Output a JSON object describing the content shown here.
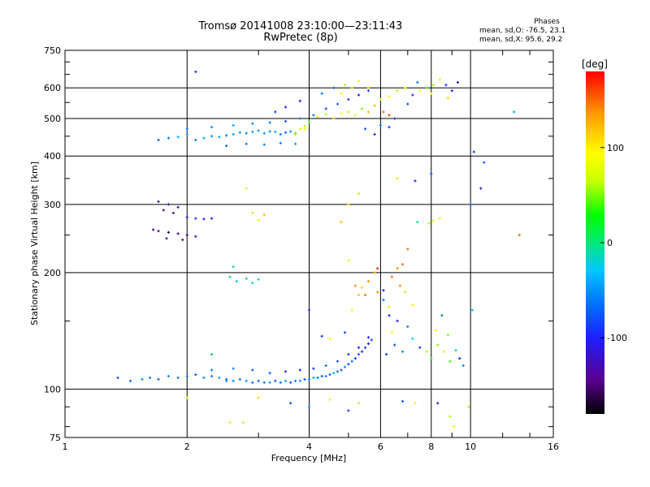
{
  "header": {
    "title": "Tromsø 20141008 23:10:00—23:11:43",
    "subtitle": "RwPretec (8p)"
  },
  "stats": {
    "title": "Phases",
    "o_line": "mean, sd,O: -76.5, 23.1",
    "x_line": "mean, sd,X:  95.6, 29.2"
  },
  "chart_data": {
    "type": "scatter",
    "title": "Tromsø 20141008 23:10:00—23:11:43",
    "subtitle": "RwPretec (8p)",
    "xlabel": "Frequency [MHz]",
    "ylabel": "Stationary phase Virtual Height [km]",
    "x_scale": "log",
    "y_scale": "log",
    "xlim": [
      1,
      16
    ],
    "ylim": [
      75,
      750
    ],
    "x_ticks": [
      1,
      2,
      4,
      6,
      8,
      10,
      16
    ],
    "x_tick_labels": [
      "1",
      "2",
      "4",
      "6",
      "8",
      "10",
      "16"
    ],
    "y_ticks": [
      75,
      100,
      200,
      300,
      400,
      500,
      600,
      750
    ],
    "y_tick_labels": [
      "75",
      "100",
      "200",
      "300",
      "400",
      "500",
      "600",
      "750"
    ],
    "grid": true,
    "colorbar": {
      "label": "[deg]",
      "range": [
        -180,
        180
      ],
      "ticks": [
        100,
        0,
        -100
      ],
      "tick_labels": [
        "100",
        "0",
        "-100"
      ]
    },
    "colors": {
      "grid": "#000000",
      "ink": "#000000",
      "colormap": [
        "#000000",
        "#5a0090",
        "#1e1eff",
        "#0078ff",
        "#00c8ff",
        "#00e878",
        "#00ff00",
        "#c8ff00",
        "#ffff00",
        "#ff9600",
        "#ff0000"
      ]
    },
    "points": [
      [
        1.35,
        107,
        -80
      ],
      [
        1.45,
        105,
        -70
      ],
      [
        1.55,
        106,
        -50
      ],
      [
        1.62,
        107,
        -60
      ],
      [
        1.7,
        106,
        -75
      ],
      [
        1.8,
        108,
        -55
      ],
      [
        1.9,
        107,
        -65
      ],
      [
        2.0,
        108,
        -60
      ],
      [
        2.1,
        109,
        -80
      ],
      [
        2.2,
        107,
        -50
      ],
      [
        2.3,
        108,
        -65
      ],
      [
        2.4,
        107,
        -40
      ],
      [
        2.5,
        106,
        -70
      ],
      [
        2.6,
        105,
        -55
      ],
      [
        2.7,
        106,
        -60
      ],
      [
        2.8,
        105,
        -45
      ],
      [
        2.9,
        104,
        -65
      ],
      [
        3.0,
        105,
        -70
      ],
      [
        3.1,
        104,
        -60
      ],
      [
        3.2,
        104,
        -50
      ],
      [
        3.3,
        105,
        -75
      ],
      [
        3.4,
        104,
        -60
      ],
      [
        3.5,
        105,
        -40
      ],
      [
        3.6,
        104,
        -70
      ],
      [
        3.7,
        105,
        -60
      ],
      [
        3.8,
        105,
        -50
      ],
      [
        3.9,
        106,
        -80
      ],
      [
        4.0,
        106,
        -65
      ],
      [
        4.1,
        107,
        -45
      ],
      [
        4.2,
        107,
        -60
      ],
      [
        4.3,
        108,
        -80
      ],
      [
        4.4,
        108,
        -55
      ],
      [
        4.5,
        109,
        -70
      ],
      [
        4.6,
        110,
        -40
      ],
      [
        4.7,
        111,
        -60
      ],
      [
        4.8,
        112,
        -75
      ],
      [
        4.9,
        114,
        -50
      ],
      [
        5.0,
        116,
        -85
      ],
      [
        5.1,
        118,
        -60
      ],
      [
        5.2,
        120,
        -95
      ],
      [
        5.3,
        123,
        -80
      ],
      [
        5.4,
        125,
        -100
      ],
      [
        5.5,
        128,
        -90
      ],
      [
        5.6,
        131,
        -105
      ],
      [
        5.7,
        134,
        -85
      ],
      [
        2.3,
        112,
        -60
      ],
      [
        2.6,
        113,
        -55
      ],
      [
        2.9,
        112,
        -70
      ],
      [
        3.2,
        110,
        -75
      ],
      [
        3.5,
        111,
        -95
      ],
      [
        3.8,
        112,
        -100
      ],
      [
        4.1,
        113,
        -90
      ],
      [
        4.4,
        115,
        -70
      ],
      [
        4.7,
        118,
        -85
      ],
      [
        5.0,
        123,
        -95
      ],
      [
        5.3,
        128,
        -110
      ],
      [
        5.6,
        136,
        -100
      ],
      [
        6.2,
        123,
        -100
      ],
      [
        6.5,
        130,
        -80
      ],
      [
        6.8,
        125,
        -60
      ],
      [
        7.2,
        135,
        -20
      ],
      [
        7.5,
        128,
        -90
      ],
      [
        7.8,
        125,
        60
      ],
      [
        8.0,
        120,
        30
      ],
      [
        8.3,
        130,
        50
      ],
      [
        8.6,
        125,
        70
      ],
      [
        8.9,
        118,
        40
      ],
      [
        9.2,
        126,
        -10
      ],
      [
        9.4,
        120,
        -100
      ],
      [
        8.2,
        142,
        90
      ],
      [
        8.8,
        138,
        50
      ],
      [
        7.0,
        145,
        -60
      ],
      [
        6.6,
        150,
        -100
      ],
      [
        6.3,
        155,
        -95
      ],
      [
        4.3,
        137,
        -90
      ],
      [
        4.0,
        160,
        -100
      ],
      [
        4.5,
        135,
        80
      ],
      [
        4.9,
        140,
        -80
      ],
      [
        5.1,
        160,
        80
      ],
      [
        5.4,
        183,
        110
      ],
      [
        5.6,
        190,
        140
      ],
      [
        5.8,
        200,
        130
      ],
      [
        5.3,
        175,
        120
      ],
      [
        6.7,
        185,
        140
      ],
      [
        6.4,
        195,
        150
      ],
      [
        6.9,
        178,
        60
      ],
      [
        7.2,
        165,
        100
      ],
      [
        6.1,
        170,
        -60
      ],
      [
        5.5,
        175,
        150
      ],
      [
        5.2,
        185,
        140
      ],
      [
        6.3,
        163,
        100
      ],
      [
        5.0,
        215,
        80
      ],
      [
        5.9,
        205,
        170
      ],
      [
        6.8,
        210,
        150
      ],
      [
        1.7,
        305,
        -120
      ],
      [
        1.8,
        300,
        -130
      ],
      [
        1.9,
        295,
        -120
      ],
      [
        1.85,
        285,
        -140
      ],
      [
        1.75,
        290,
        -130
      ],
      [
        1.65,
        258,
        -150
      ],
      [
        1.7,
        256,
        -140
      ],
      [
        1.8,
        254,
        -160
      ],
      [
        1.9,
        252,
        -150
      ],
      [
        2.0,
        250,
        -140
      ],
      [
        2.1,
        248,
        -120
      ],
      [
        1.78,
        245,
        -130
      ],
      [
        1.95,
        243,
        -140
      ],
      [
        2.0,
        278,
        -100
      ],
      [
        2.1,
        276,
        -90
      ],
      [
        2.2,
        275,
        -110
      ],
      [
        2.3,
        276,
        -95
      ],
      [
        2.55,
        195,
        -20
      ],
      [
        2.65,
        190,
        -30
      ],
      [
        2.8,
        193,
        -10
      ],
      [
        2.9,
        188,
        -20
      ],
      [
        3.0,
        192,
        -30
      ],
      [
        2.6,
        207,
        -20
      ],
      [
        2.9,
        285,
        110
      ],
      [
        3.1,
        282,
        120
      ],
      [
        3.0,
        273,
        80
      ],
      [
        2.8,
        330,
        70
      ],
      [
        4.8,
        270,
        120
      ],
      [
        5.0,
        300,
        110
      ],
      [
        7.4,
        270,
        -10
      ],
      [
        8.1,
        272,
        80
      ],
      [
        8.4,
        276,
        100
      ],
      [
        7.9,
        268,
        60
      ],
      [
        1.7,
        440,
        -70
      ],
      [
        1.8,
        445,
        -60
      ],
      [
        1.9,
        448,
        -40
      ],
      [
        2.0,
        455,
        -50
      ],
      [
        2.1,
        440,
        -60
      ],
      [
        2.2,
        445,
        -45
      ],
      [
        2.3,
        450,
        -55
      ],
      [
        2.4,
        448,
        -40
      ],
      [
        2.5,
        452,
        -60
      ],
      [
        2.6,
        455,
        -45
      ],
      [
        2.7,
        460,
        -50
      ],
      [
        2.8,
        458,
        -55
      ],
      [
        2.9,
        462,
        -40
      ],
      [
        3.0,
        465,
        -45
      ],
      [
        3.1,
        458,
        -50
      ],
      [
        3.2,
        463,
        -55
      ],
      [
        3.3,
        462,
        -40
      ],
      [
        3.4,
        455,
        -60
      ],
      [
        3.5,
        460,
        -70
      ],
      [
        3.6,
        463,
        -50
      ],
      [
        3.7,
        458,
        30
      ],
      [
        3.8,
        470,
        80
      ],
      [
        3.9,
        478,
        60
      ],
      [
        4.0,
        490,
        40
      ],
      [
        4.2,
        505,
        100
      ],
      [
        4.4,
        512,
        60
      ],
      [
        4.6,
        500,
        120
      ],
      [
        4.8,
        515,
        100
      ],
      [
        5.0,
        520,
        60
      ],
      [
        5.2,
        510,
        80
      ],
      [
        5.4,
        530,
        50
      ],
      [
        5.6,
        520,
        120
      ],
      [
        2.0,
        470,
        -60
      ],
      [
        2.3,
        475,
        -55
      ],
      [
        2.6,
        480,
        -45
      ],
      [
        2.9,
        485,
        -55
      ],
      [
        3.2,
        488,
        -60
      ],
      [
        3.5,
        492,
        -80
      ],
      [
        3.8,
        500,
        -70
      ],
      [
        4.1,
        510,
        -60
      ],
      [
        4.4,
        530,
        -80
      ],
      [
        4.7,
        545,
        -70
      ],
      [
        5.0,
        560,
        -90
      ],
      [
        5.3,
        575,
        -100
      ],
      [
        5.6,
        590,
        -85
      ],
      [
        2.5,
        425,
        -70
      ],
      [
        2.8,
        430,
        -60
      ],
      [
        3.1,
        428,
        -55
      ],
      [
        3.4,
        432,
        -60
      ],
      [
        3.7,
        430,
        -50
      ],
      [
        3.3,
        520,
        -90
      ],
      [
        3.5,
        535,
        -100
      ],
      [
        3.8,
        555,
        -95
      ],
      [
        4.3,
        580,
        -60
      ],
      [
        4.6,
        600,
        -80
      ],
      [
        4.9,
        610,
        60
      ],
      [
        5.3,
        625,
        100
      ],
      [
        5.6,
        600,
        110
      ],
      [
        6.0,
        560,
        80
      ],
      [
        6.3,
        570,
        100
      ],
      [
        6.6,
        590,
        60
      ],
      [
        6.9,
        600,
        90
      ],
      [
        7.2,
        575,
        -90
      ],
      [
        7.5,
        590,
        90
      ],
      [
        7.8,
        600,
        40
      ],
      [
        8.1,
        610,
        60
      ],
      [
        8.4,
        630,
        70
      ],
      [
        8.7,
        610,
        -90
      ],
      [
        9.0,
        590,
        -100
      ],
      [
        9.3,
        620,
        -120
      ],
      [
        6.1,
        520,
        150
      ],
      [
        6.5,
        500,
        -100
      ],
      [
        7.0,
        545,
        -80
      ],
      [
        7.4,
        620,
        -60
      ],
      [
        8.0,
        580,
        90
      ],
      [
        8.8,
        565,
        110
      ],
      [
        5.8,
        540,
        120
      ],
      [
        6.3,
        510,
        160
      ],
      [
        4.8,
        580,
        100
      ],
      [
        5.1,
        600,
        110
      ],
      [
        3.7,
        455,
        110
      ],
      [
        3.9,
        470,
        80
      ],
      [
        2.1,
        660,
        -90
      ],
      [
        10.8,
        385,
        -80
      ],
      [
        10.2,
        410,
        -90
      ],
      [
        12.8,
        520,
        -40
      ],
      [
        13.2,
        250,
        150
      ],
      [
        10.0,
        300,
        -80
      ],
      [
        9.9,
        90,
        60
      ],
      [
        10.1,
        160,
        -30
      ],
      [
        8.5,
        155,
        -60
      ],
      [
        9.6,
        115,
        -60
      ],
      [
        2.5,
        105,
        -50
      ],
      [
        2.3,
        123,
        -40
      ],
      [
        2.75,
        82,
        110
      ],
      [
        2.55,
        82,
        100
      ],
      [
        3.6,
        92,
        -80
      ],
      [
        5.0,
        88,
        -90
      ],
      [
        5.3,
        92,
        110
      ],
      [
        6.8,
        93,
        -80
      ],
      [
        7.3,
        92,
        100
      ],
      [
        8.3,
        92,
        -100
      ],
      [
        8.9,
        85,
        60
      ],
      [
        4.5,
        94,
        100
      ],
      [
        9.1,
        80,
        100
      ],
      [
        2.0,
        95,
        80
      ],
      [
        3.0,
        95,
        110
      ],
      [
        4.0,
        90,
        -60
      ],
      [
        6.4,
        140,
        90
      ],
      [
        5.9,
        178,
        140
      ],
      [
        6.1,
        180,
        -100
      ],
      [
        7.0,
        230,
        150
      ],
      [
        6.6,
        205,
        140
      ],
      [
        5.3,
        320,
        110
      ],
      [
        7.3,
        345,
        -100
      ],
      [
        8.0,
        360,
        -80
      ],
      [
        6.6,
        350,
        110
      ],
      [
        10.6,
        330,
        -120
      ],
      [
        5.8,
        455,
        -100
      ],
      [
        5.5,
        470,
        -80
      ],
      [
        6.0,
        480,
        -60
      ],
      [
        6.3,
        475,
        -90
      ]
    ]
  }
}
